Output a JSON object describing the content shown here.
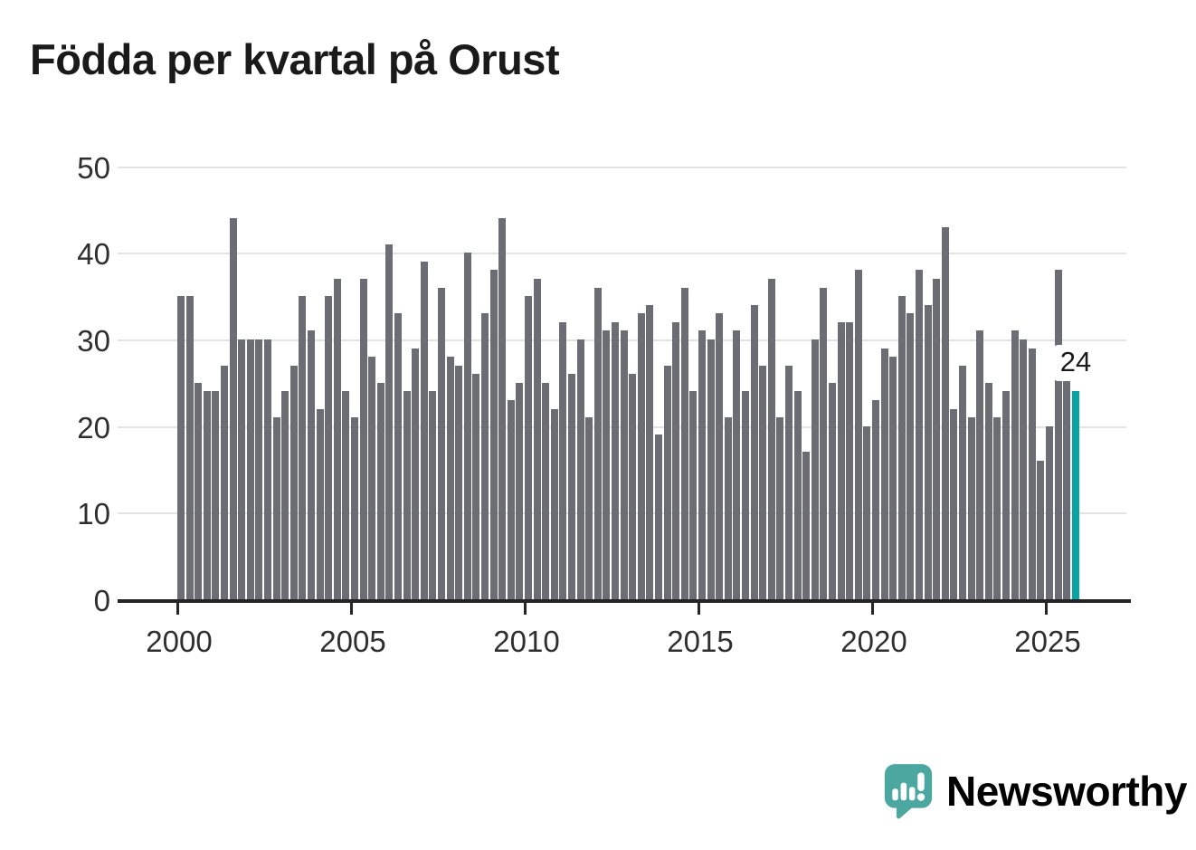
{
  "title": "Födda per kvartal på Orust",
  "chart_data": {
    "type": "bar",
    "title": "Födda per kvartal på Orust",
    "x_unit": "quarter",
    "start_year": 2000,
    "categories_note": "104 consecutive quarters, 2000 Q1 through 2025 Q4",
    "values": [
      35,
      35,
      25,
      24,
      24,
      27,
      44,
      30,
      30,
      30,
      30,
      21,
      24,
      27,
      35,
      31,
      22,
      35,
      37,
      24,
      21,
      37,
      28,
      25,
      41,
      33,
      24,
      29,
      39,
      24,
      36,
      28,
      27,
      40,
      26,
      33,
      38,
      44,
      23,
      25,
      35,
      37,
      25,
      22,
      32,
      26,
      30,
      21,
      36,
      31,
      32,
      31,
      26,
      33,
      34,
      19,
      27,
      32,
      36,
      24,
      31,
      30,
      33,
      21,
      31,
      24,
      34,
      27,
      37,
      21,
      27,
      24,
      17,
      30,
      36,
      25,
      32,
      32,
      38,
      20,
      23,
      29,
      28,
      35,
      33,
      38,
      34,
      37,
      43,
      22,
      27,
      21,
      31,
      25,
      21,
      24,
      31,
      30,
      29,
      16,
      20,
      38,
      26,
      24
    ],
    "ylim": [
      0,
      50
    ],
    "y_ticks": [
      0,
      10,
      20,
      30,
      40,
      50
    ],
    "x_tick_years": [
      2000,
      2005,
      2010,
      2015,
      2020,
      2025
    ],
    "grid": "horizontal",
    "legend": "none",
    "highlight": {
      "index": 103,
      "quarter": "2025 Q4",
      "value": 24,
      "label": "24"
    },
    "colors": {
      "bar": "#6c6c74",
      "highlight_bar": "#0aa3a3",
      "gridline": "#e3e3e3",
      "axis": "#252525"
    }
  },
  "annotation": {
    "value_label": "24"
  },
  "footer": {
    "brand": "Newsworthy",
    "brand_color": "#4ba79f",
    "logo_icon": "speech-bubble-bar-chart-icon"
  }
}
